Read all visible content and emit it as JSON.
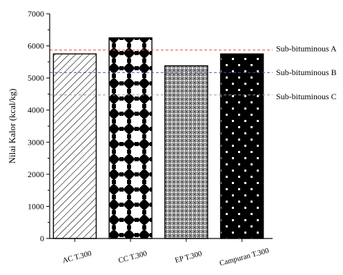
{
  "chart_data": {
    "type": "bar",
    "categories": [
      "AC T.300",
      "CC T.300",
      "EP T.300",
      "Campuran T.300"
    ],
    "values": [
      5750,
      6250,
      5380,
      5750
    ],
    "ylabel": "Nilai Kalor (kcal/kg)",
    "xlabel": "",
    "ylim": [
      0,
      7000
    ],
    "yticks": [
      0,
      1000,
      2000,
      3000,
      4000,
      5000,
      6000,
      7000
    ],
    "grid": false,
    "bar_patterns": [
      "diagonal-hatch",
      "white-diamond-on-black-grid",
      "gray-crosshatch",
      "white-dots-on-black"
    ],
    "reference_lines": [
      {
        "label": "Sub-bituminous A",
        "value": 5870,
        "color": "#e8474a",
        "style": "dashed"
      },
      {
        "label": "Sub-bituminous B",
        "value": 5170,
        "color": "#3a4fd0",
        "style": "dashed"
      },
      {
        "label": "Sub-bituminous C",
        "value": 4470,
        "color": "#9a9a9a",
        "style": "dashed"
      }
    ]
  }
}
